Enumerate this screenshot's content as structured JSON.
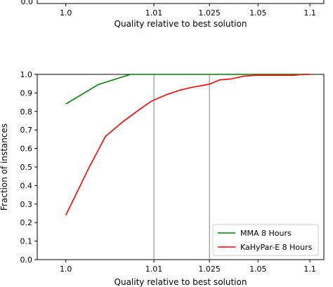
{
  "chart_data": [
    {
      "type": "line",
      "partial": true,
      "x_ticks": [
        "1.0",
        "1.01",
        "1.025",
        "1.05",
        "1.1"
      ],
      "y_ticks": [
        "0.0"
      ],
      "xlabel": "Quality relative to best solution"
    },
    {
      "type": "line",
      "xscale": "log(x - 0.995)",
      "xlim": [
        0.9985,
        1.12
      ],
      "ylim": [
        0.0,
        1.0
      ],
      "x_ticks": [
        1.0,
        1.01,
        1.025,
        1.05,
        1.1
      ],
      "x_tick_labels": [
        "1.0",
        "1.01",
        "1.025",
        "1.05",
        "1.1"
      ],
      "y_ticks": [
        0.0,
        0.1,
        0.2,
        0.3,
        0.4,
        0.5,
        0.6,
        0.7,
        0.8,
        0.9,
        1.0
      ],
      "y_tick_labels": [
        "0.0",
        "0.1",
        "0.2",
        "0.3",
        "0.4",
        "0.5",
        "0.6",
        "0.7",
        "0.8",
        "0.9",
        "1.0"
      ],
      "xlabel": "Quality relative to best solution",
      "ylabel": "Fraction of instances",
      "vlines": [
        1.01,
        1.025
      ],
      "grid": false,
      "legend_position": "lower-right",
      "series": [
        {
          "name": "MMA 8 Hours",
          "color": "#008000",
          "x": [
            1.0,
            1.0025,
            1.0062,
            1.01,
            1.025,
            1.05,
            1.1
          ],
          "y": [
            0.84,
            0.945,
            1.0,
            1.0,
            1.0,
            1.0,
            1.0
          ]
        },
        {
          "name": "KaHyPar-E 8 Hours",
          "color": "#ff0000",
          "x": [
            1.0,
            1.0017,
            1.0032,
            1.0052,
            1.0075,
            1.0095,
            1.0125,
            1.0158,
            1.019,
            1.0225,
            1.0252,
            1.029,
            1.034,
            1.041,
            1.048,
            1.06,
            1.08,
            1.093,
            1.1
          ],
          "y": [
            0.24,
            0.5,
            0.665,
            0.745,
            0.81,
            0.855,
            0.89,
            0.915,
            0.93,
            0.94,
            0.948,
            0.97,
            0.975,
            0.99,
            0.995,
            0.995,
            0.995,
            1.0,
            1.0
          ]
        }
      ]
    }
  ]
}
